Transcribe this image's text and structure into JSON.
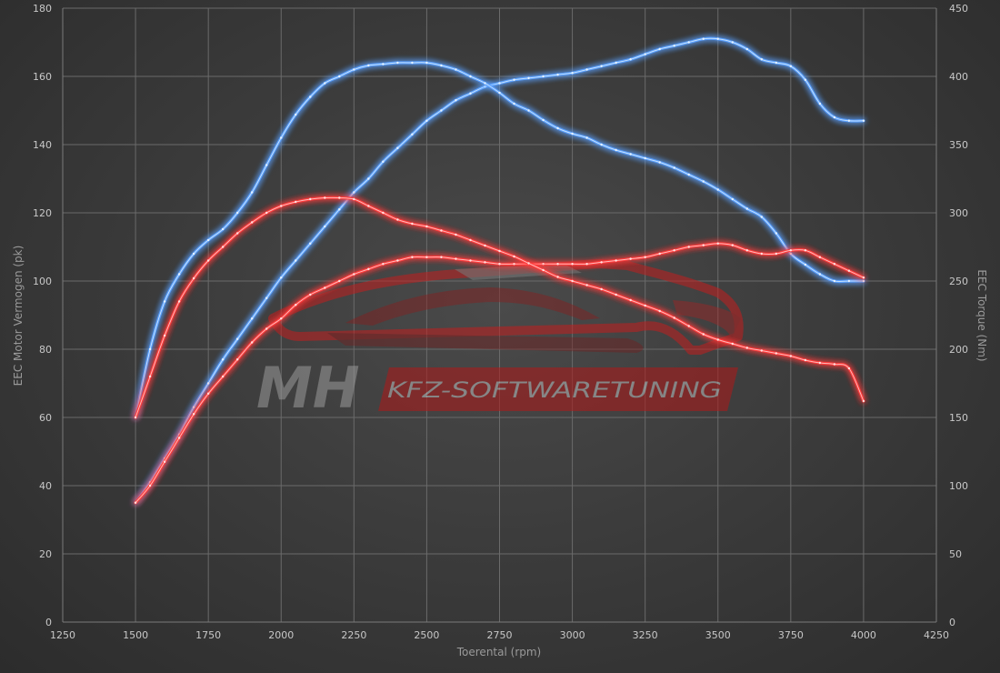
{
  "chart_data": {
    "type": "line",
    "xlabel": "Toerental (rpm)",
    "ylabel": "EEC Motor Vermogen (pk)",
    "y2label": "EEC Torque (Nm)",
    "xlim": [
      1250,
      4250
    ],
    "ylim": [
      0,
      180
    ],
    "y2lim": [
      0,
      450
    ],
    "xticks": [
      1250,
      1500,
      1750,
      2000,
      2250,
      2500,
      2750,
      3000,
      3250,
      3500,
      3750,
      4000,
      4250
    ],
    "yticks": [
      0,
      20,
      40,
      60,
      80,
      100,
      120,
      140,
      160,
      180
    ],
    "y2ticks": [
      0,
      50,
      100,
      150,
      200,
      250,
      300,
      350,
      400,
      450
    ],
    "grid": true,
    "watermark": {
      "text_left": "MH",
      "text_right": "KFZ-SOFTWARETUNING"
    },
    "colors": {
      "tuned": "#5aa0ff",
      "stock": "#ff3b3b"
    },
    "series": [
      {
        "axis": "left",
        "color": "#5aa0ff",
        "x": [
          1500,
          1550,
          1600,
          1650,
          1700,
          1750,
          1800,
          1850,
          1900,
          1950,
          2000,
          2050,
          2100,
          2150,
          2200,
          2250,
          2300,
          2350,
          2400,
          2450,
          2500,
          2550,
          2600,
          2650,
          2700,
          2750,
          2800,
          2850,
          2900,
          2950,
          3000,
          3050,
          3100,
          3150,
          3200,
          3250,
          3300,
          3350,
          3400,
          3450,
          3500,
          3550,
          3600,
          3650,
          3700,
          3750,
          3800,
          3850,
          3900,
          3950,
          4000
        ],
        "values": [
          35,
          41,
          48,
          55,
          63,
          70,
          77,
          83,
          89,
          95,
          101,
          106,
          111,
          116,
          121,
          126,
          130,
          135,
          139,
          143,
          147,
          150,
          153,
          155,
          157,
          158,
          159,
          159.5,
          160,
          160.5,
          161,
          162,
          163,
          164,
          165,
          166.5,
          168,
          169,
          170,
          171,
          171,
          170,
          168,
          165,
          164,
          163,
          159,
          152,
          148,
          147,
          147
        ]
      },
      {
        "axis": "right",
        "color": "#5aa0ff",
        "x": [
          1500,
          1550,
          1600,
          1650,
          1700,
          1750,
          1800,
          1850,
          1900,
          1950,
          2000,
          2050,
          2100,
          2150,
          2200,
          2250,
          2300,
          2350,
          2400,
          2450,
          2500,
          2550,
          2600,
          2650,
          2700,
          2750,
          2800,
          2850,
          2900,
          2950,
          3000,
          3050,
          3100,
          3150,
          3200,
          3250,
          3300,
          3350,
          3400,
          3450,
          3500,
          3550,
          3600,
          3650,
          3700,
          3750,
          3800,
          3850,
          3900,
          3950,
          4000
        ],
        "values": [
          150,
          200,
          235,
          255,
          270,
          280,
          288,
          300,
          315,
          335,
          355,
          372,
          385,
          395,
          400,
          405,
          408,
          409,
          410,
          410,
          410,
          408,
          405,
          400,
          395,
          388,
          380,
          375,
          368,
          362,
          358,
          355,
          350,
          346,
          343,
          340,
          337,
          333,
          328,
          323,
          317,
          310,
          303,
          297,
          285,
          270,
          262,
          255,
          250,
          250,
          250
        ]
      },
      {
        "axis": "left",
        "color": "#ff3b3b",
        "x": [
          1500,
          1550,
          1600,
          1650,
          1700,
          1750,
          1800,
          1850,
          1900,
          1950,
          2000,
          2050,
          2100,
          2150,
          2200,
          2250,
          2300,
          2350,
          2400,
          2450,
          2500,
          2550,
          2600,
          2650,
          2700,
          2750,
          2800,
          2850,
          2900,
          2950,
          3000,
          3050,
          3100,
          3150,
          3200,
          3250,
          3300,
          3350,
          3400,
          3450,
          3500,
          3550,
          3600,
          3650,
          3700,
          3750,
          3800,
          3850,
          3900,
          3950,
          4000
        ],
        "values": [
          35,
          40,
          47,
          54,
          61,
          67,
          72,
          77,
          82,
          86,
          89,
          93,
          96,
          98,
          100,
          102,
          103.5,
          105,
          106,
          107,
          107,
          107,
          106.5,
          106,
          105.5,
          105,
          105,
          105,
          105,
          105,
          105,
          105,
          105.5,
          106,
          106.5,
          107,
          108,
          109,
          110,
          110.5,
          111,
          110.5,
          109,
          108,
          108,
          109,
          109,
          107,
          105,
          103,
          101
        ]
      },
      {
        "axis": "right",
        "color": "#ff3b3b",
        "x": [
          1500,
          1550,
          1600,
          1650,
          1700,
          1750,
          1800,
          1850,
          1900,
          1950,
          2000,
          2050,
          2100,
          2150,
          2200,
          2250,
          2300,
          2350,
          2400,
          2450,
          2500,
          2550,
          2600,
          2650,
          2700,
          2750,
          2800,
          2850,
          2900,
          2950,
          3000,
          3050,
          3100,
          3150,
          3200,
          3250,
          3300,
          3350,
          3400,
          3450,
          3500,
          3550,
          3600,
          3650,
          3700,
          3750,
          3800,
          3850,
          3900,
          3950,
          4000
        ],
        "values": [
          150,
          180,
          210,
          235,
          252,
          265,
          275,
          285,
          293,
          300,
          305,
          308,
          310,
          311,
          311,
          310,
          305,
          300,
          295,
          292,
          290,
          287,
          284,
          280,
          276,
          272,
          268,
          263,
          258,
          253,
          250,
          247,
          244,
          240,
          236,
          232,
          228,
          223,
          217,
          211,
          207,
          204,
          201,
          199,
          197,
          195,
          192,
          190,
          189,
          186,
          162
        ]
      }
    ]
  }
}
